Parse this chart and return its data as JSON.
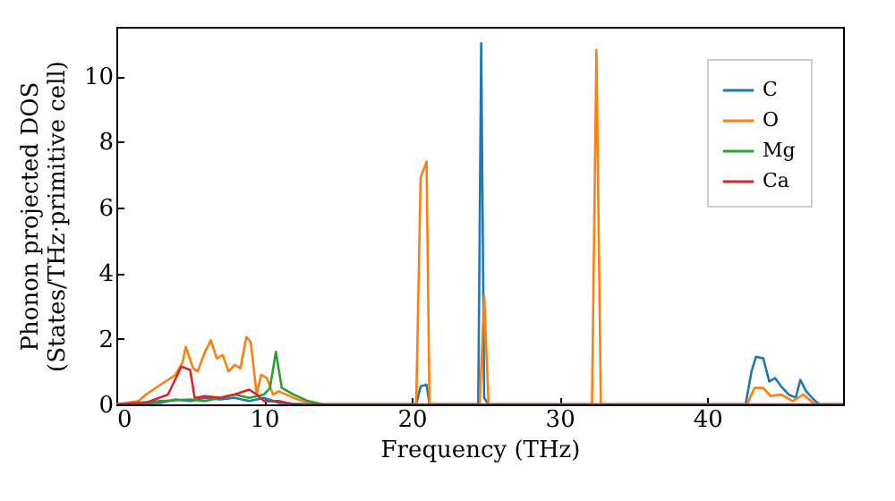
{
  "chart_data": {
    "type": "line",
    "xlabel": "Frequency (THz)",
    "ylabel": "Phonon projected DOS\n(States/THz·primitive cell)",
    "xlim": [
      0,
      49.2
    ],
    "ylim": [
      0,
      11.5
    ],
    "xticks": [
      0,
      10,
      20,
      30,
      40
    ],
    "yticks": [
      0,
      2,
      4,
      6,
      8,
      10
    ],
    "grid": false,
    "legend": "top right",
    "series": [
      {
        "name": "C",
        "color": "#1f77b4",
        "x": [
          0,
          3,
          4,
          5,
          6,
          7,
          8,
          9,
          10,
          11,
          12,
          13,
          20.3,
          20.6,
          21,
          21.2,
          24.5,
          24.7,
          24.9,
          25.2,
          42.6,
          43,
          43.3,
          43.8,
          44.2,
          44.6,
          45,
          45.5,
          46,
          46.3,
          46.7,
          47.2,
          47.6,
          49.2
        ],
        "values": [
          0,
          0.05,
          0.15,
          0.1,
          0.2,
          0.15,
          0.2,
          0.1,
          0.2,
          0.05,
          0.02,
          0,
          0,
          0.55,
          0.6,
          0,
          0,
          11,
          0.2,
          0,
          0,
          1,
          1.45,
          1.4,
          0.7,
          0.8,
          0.55,
          0.3,
          0.2,
          0.75,
          0.4,
          0.15,
          0,
          0
        ]
      },
      {
        "name": "O",
        "color": "#ff7f0e",
        "x": [
          0,
          1.5,
          2,
          3,
          4,
          4.5,
          4.7,
          5.2,
          5.5,
          6,
          6.4,
          6.8,
          7.2,
          7.6,
          8,
          8.4,
          8.8,
          9.1,
          9.5,
          9.8,
          10.2,
          10.6,
          11,
          12,
          13,
          14,
          20.3,
          20.6,
          21,
          21.2,
          24.6,
          24.9,
          25.2,
          32.2,
          32.5,
          32.8,
          42.7,
          43.2,
          43.8,
          44.3,
          45,
          45.8,
          46.5,
          47.3,
          49.2
        ],
        "values": [
          0,
          0.1,
          0.3,
          0.6,
          0.9,
          1.3,
          1.75,
          1.1,
          1.0,
          1.6,
          1.95,
          1.4,
          1.5,
          1.0,
          1.2,
          1.1,
          2.05,
          1.9,
          0.3,
          0.9,
          0.8,
          0.3,
          0.4,
          0.2,
          0.05,
          0,
          0,
          6.9,
          7.4,
          0,
          0,
          3.3,
          0,
          0,
          10.8,
          0,
          0,
          0.5,
          0.5,
          0.25,
          0.3,
          0.1,
          0.3,
          0,
          0
        ]
      },
      {
        "name": "Mg",
        "color": "#2ca02c",
        "x": [
          0,
          3,
          5,
          6,
          7,
          8,
          9,
          10,
          10.4,
          10.8,
          11.2,
          12,
          13,
          14
        ],
        "values": [
          0,
          0.1,
          0.15,
          0.1,
          0.2,
          0.3,
          0.2,
          0.3,
          0.5,
          1.6,
          0.5,
          0.3,
          0.1,
          0
        ]
      },
      {
        "name": "Ca",
        "color": "#d62728",
        "x": [
          0,
          2,
          3.5,
          4.4,
          5,
          5.3,
          6,
          7,
          8,
          9,
          9.5,
          10,
          11,
          12,
          49.2
        ],
        "values": [
          0,
          0.05,
          0.3,
          1.15,
          1.05,
          0.2,
          0.25,
          0.2,
          0.3,
          0.45,
          0.3,
          0.1,
          0.1,
          0,
          0
        ]
      }
    ]
  }
}
